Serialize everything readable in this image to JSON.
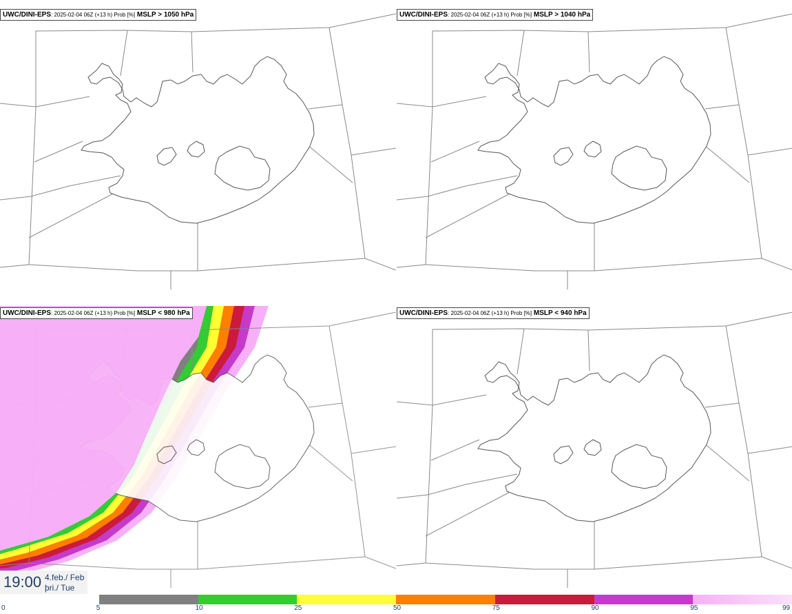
{
  "panels": [
    {
      "model": "UWC/DINI-EPS",
      "meta": ": 2025-02-04 06Z (+13 h) Prob [%]",
      "threshold": "MSLP > 1050 hPa"
    },
    {
      "model": "UWC/DINI-EPS",
      "meta": ": 2025-02-04 06Z (+13 h) Prob [%]",
      "threshold": "MSLP > 1040 hPa"
    },
    {
      "model": "UWC/DINI-EPS",
      "meta": ": 2025-02-04 06Z (+13 h) Prob [%]",
      "threshold": "MSLP < 980 hPa"
    },
    {
      "model": "UWC/DINI-EPS",
      "meta": ": 2025-02-04 06Z (+13 h) Prob [%]",
      "threshold": "MSLP < 940 hPa"
    }
  ],
  "timestamp": {
    "time": "19:00",
    "date": "4.feb./ Feb",
    "day": "þri./ Tue"
  },
  "colorbar": {
    "ticks": [
      "0",
      "5",
      "10",
      "25",
      "50",
      "75",
      "90",
      "95",
      "99"
    ],
    "colors": [
      "#ffffff",
      "#b3b3b3",
      "#808080",
      "#33cc33",
      "#ffff33",
      "#ff7f00",
      "#cc1a3c",
      "#c53ac9",
      "#f7b0f7"
    ]
  }
}
